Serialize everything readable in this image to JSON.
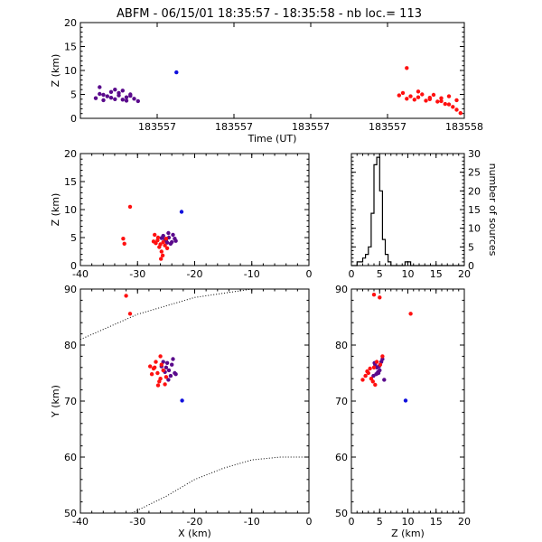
{
  "title": "ABFM - 06/15/01 18:35:57 - 18:35:58 - nb loc.=    113",
  "colors": {
    "early": "#5a0a8c",
    "mid": "#1010dd",
    "late": "#ff1010"
  },
  "chart_data": [
    {
      "id": "time-height",
      "type": "scatter",
      "xlabel": "Time (UT)",
      "ylabel": "Z (km)",
      "xlim": [
        0,
        1
      ],
      "ylim": [
        0,
        20
      ],
      "xtick_positions": [
        0.2,
        0.4,
        0.6,
        0.8,
        1.0
      ],
      "xtick_labels": [
        "183557",
        "183557",
        "183557",
        "183557",
        "183558"
      ],
      "yticks": [
        0,
        5,
        10,
        15,
        20
      ],
      "series": [
        {
          "color": "early",
          "points": [
            [
              0.04,
              4.2
            ],
            [
              0.05,
              5.1
            ],
            [
              0.06,
              3.8
            ],
            [
              0.07,
              4.6
            ],
            [
              0.08,
              5.5
            ],
            [
              0.09,
              4.0
            ],
            [
              0.1,
              4.8
            ],
            [
              0.11,
              3.9
            ],
            [
              0.12,
              4.4
            ],
            [
              0.13,
              5.0
            ],
            [
              0.14,
              4.1
            ],
            [
              0.15,
              3.6
            ],
            [
              0.06,
              4.9
            ],
            [
              0.08,
              4.3
            ],
            [
              0.1,
              5.3
            ],
            [
              0.12,
              3.7
            ],
            [
              0.05,
              6.5
            ],
            [
              0.09,
              6.0
            ],
            [
              0.11,
              5.8
            ],
            [
              0.13,
              4.7
            ]
          ]
        },
        {
          "color": "mid",
          "points": [
            [
              0.25,
              9.6
            ]
          ]
        },
        {
          "color": "late",
          "points": [
            [
              0.83,
              4.8
            ],
            [
              0.84,
              5.3
            ],
            [
              0.85,
              4.1
            ],
            [
              0.86,
              4.6
            ],
            [
              0.87,
              3.9
            ],
            [
              0.88,
              4.4
            ],
            [
              0.89,
              5.0
            ],
            [
              0.9,
              3.7
            ],
            [
              0.91,
              4.3
            ],
            [
              0.92,
              4.9
            ],
            [
              0.93,
              3.5
            ],
            [
              0.94,
              4.2
            ],
            [
              0.95,
              3.0
            ],
            [
              0.96,
              4.6
            ],
            [
              0.97,
              2.4
            ],
            [
              0.98,
              3.8
            ],
            [
              0.99,
              1.1
            ],
            [
              0.85,
              10.5
            ],
            [
              0.88,
              5.6
            ],
            [
              0.91,
              4.0
            ],
            [
              0.94,
              3.6
            ],
            [
              0.96,
              2.9
            ],
            [
              0.98,
              1.8
            ]
          ]
        }
      ]
    },
    {
      "id": "x-z",
      "type": "scatter",
      "xlabel": "",
      "ylabel": "Z (km)",
      "xlim": [
        -40,
        0
      ],
      "ylim": [
        0,
        20
      ],
      "xticks": [
        -40,
        -30,
        -20,
        -10,
        0
      ],
      "yticks": [
        0,
        5,
        10,
        15,
        20
      ],
      "series": [
        {
          "color": "early",
          "points": [
            [
              -25.0,
              4.5
            ],
            [
              -24.5,
              5.0
            ],
            [
              -24.0,
              4.2
            ],
            [
              -23.5,
              4.8
            ],
            [
              -25.5,
              5.3
            ],
            [
              -24.2,
              3.9
            ],
            [
              -23.8,
              5.5
            ],
            [
              -24.8,
              4.1
            ],
            [
              -25.2,
              4.7
            ],
            [
              -23.3,
              4.4
            ],
            [
              -24.6,
              5.8
            ],
            [
              -25.8,
              4.9
            ]
          ]
        },
        {
          "color": "mid",
          "points": [
            [
              -22.3,
              9.6
            ]
          ]
        },
        {
          "color": "late",
          "points": [
            [
              -31.3,
              10.5
            ],
            [
              -32.5,
              4.8
            ],
            [
              -32.3,
              3.9
            ],
            [
              -27.0,
              5.5
            ],
            [
              -26.5,
              4.5
            ],
            [
              -26.0,
              3.8
            ],
            [
              -25.5,
              4.2
            ],
            [
              -26.2,
              3.3
            ],
            [
              -25.8,
              2.5
            ],
            [
              -25.6,
              1.8
            ],
            [
              -26.8,
              4.0
            ],
            [
              -25.2,
              3.6
            ],
            [
              -25.0,
              4.8
            ],
            [
              -26.4,
              5.0
            ],
            [
              -25.9,
              1.2
            ],
            [
              -27.2,
              4.3
            ],
            [
              -24.8,
              3.1
            ]
          ]
        }
      ]
    },
    {
      "id": "altitude-histogram",
      "type": "bar",
      "xlabel": "",
      "ylabel": "number of sources",
      "xlim": [
        0,
        20
      ],
      "ylim": [
        0,
        30
      ],
      "xticks": [
        0,
        5,
        10,
        15,
        20
      ],
      "yticks": [
        0,
        5,
        10,
        15,
        20,
        25,
        30
      ],
      "bin_edges": [
        0,
        0.5,
        1,
        1.5,
        2,
        2.5,
        3,
        3.5,
        4,
        4.5,
        5,
        5.5,
        6,
        6.5,
        7,
        7.5,
        8,
        8.5,
        9,
        9.5,
        10,
        10.5,
        11,
        11.5,
        12,
        12.5,
        13,
        13.5,
        14,
        14.5,
        15,
        15.5,
        16,
        16.5,
        17,
        17.5,
        18,
        18.5,
        19,
        19.5,
        20
      ],
      "counts": [
        0,
        0,
        1,
        1,
        2,
        3,
        5,
        14,
        27,
        29,
        20,
        7,
        3,
        1,
        0,
        0,
        0,
        0,
        0,
        1,
        1,
        0,
        0,
        0,
        0,
        0,
        0,
        0,
        0,
        0,
        0,
        0,
        0,
        0,
        0,
        0,
        0,
        0,
        0,
        0
      ]
    },
    {
      "id": "plan-view",
      "type": "scatter",
      "xlabel": "X (km)",
      "ylabel": "Y (km)",
      "xlim": [
        -40,
        0
      ],
      "ylim": [
        50,
        90
      ],
      "xticks": [
        -40,
        -30,
        -20,
        -10,
        0
      ],
      "yticks": [
        50,
        60,
        70,
        80,
        90
      ],
      "range_rings": [
        [
          [
            -40,
            81
          ],
          [
            -30,
            85.5
          ],
          [
            -20,
            88.5
          ],
          [
            -10,
            90
          ],
          [
            0,
            90
          ]
        ],
        [
          [
            -31,
            50
          ],
          [
            -25,
            53
          ],
          [
            -20,
            56
          ],
          [
            -15,
            58
          ],
          [
            -10,
            59.5
          ],
          [
            -5,
            60
          ],
          [
            0,
            60
          ]
        ]
      ],
      "series": [
        {
          "color": "early",
          "points": [
            [
              -25.0,
              76.0
            ],
            [
              -24.5,
              75.5
            ],
            [
              -24.0,
              76.5
            ],
            [
              -23.5,
              75.0
            ],
            [
              -25.5,
              77.0
            ],
            [
              -24.2,
              74.5
            ],
            [
              -23.8,
              77.5
            ],
            [
              -24.8,
              76.8
            ],
            [
              -25.2,
              75.2
            ],
            [
              -23.3,
              74.8
            ],
            [
              -24.6,
              73.8
            ],
            [
              -25.8,
              76.2
            ]
          ]
        },
        {
          "color": "mid",
          "points": [
            [
              -22.2,
              70.1
            ]
          ]
        },
        {
          "color": "late",
          "points": [
            [
              -32.0,
              88.8
            ],
            [
              -31.3,
              85.6
            ],
            [
              -27.0,
              76.0
            ],
            [
              -26.5,
              75.0
            ],
            [
              -26.0,
              74.0
            ],
            [
              -25.5,
              75.5
            ],
            [
              -26.2,
              73.5
            ],
            [
              -25.8,
              76.5
            ],
            [
              -27.5,
              74.8
            ],
            [
              -26.8,
              77.0
            ],
            [
              -25.2,
              73.0
            ],
            [
              -27.2,
              75.8
            ],
            [
              -26.4,
              72.8
            ],
            [
              -25.0,
              74.3
            ],
            [
              -27.8,
              76.2
            ],
            [
              -26.0,
              78.0
            ]
          ]
        }
      ]
    },
    {
      "id": "z-y",
      "type": "scatter",
      "xlabel": "Z (km)",
      "ylabel": "",
      "xlim": [
        0,
        20
      ],
      "ylim": [
        50,
        90
      ],
      "xticks": [
        0,
        5,
        10,
        15,
        20
      ],
      "yticks": [
        50,
        60,
        70,
        80,
        90
      ],
      "series": [
        {
          "color": "early",
          "points": [
            [
              4.5,
              76.0
            ],
            [
              5.0,
              75.5
            ],
            [
              4.2,
              76.5
            ],
            [
              4.8,
              75.0
            ],
            [
              5.3,
              77.0
            ],
            [
              3.9,
              74.5
            ],
            [
              5.5,
              77.5
            ],
            [
              4.1,
              76.8
            ],
            [
              4.7,
              75.2
            ],
            [
              4.4,
              74.8
            ],
            [
              5.8,
              73.8
            ],
            [
              4.9,
              76.2
            ]
          ]
        },
        {
          "color": "mid",
          "points": [
            [
              9.6,
              70.1
            ]
          ]
        },
        {
          "color": "late",
          "points": [
            [
              4.0,
              89.0
            ],
            [
              5.0,
              88.5
            ],
            [
              10.5,
              85.6
            ],
            [
              3.0,
              75.0
            ],
            [
              3.5,
              74.0
            ],
            [
              4.0,
              76.0
            ],
            [
              2.5,
              74.5
            ],
            [
              3.8,
              73.5
            ],
            [
              4.5,
              77.0
            ],
            [
              2.0,
              73.8
            ],
            [
              3.3,
              75.8
            ],
            [
              4.2,
              72.9
            ],
            [
              5.1,
              76.5
            ],
            [
              2.8,
              75.3
            ],
            [
              5.5,
              78.0
            ]
          ]
        }
      ]
    }
  ]
}
